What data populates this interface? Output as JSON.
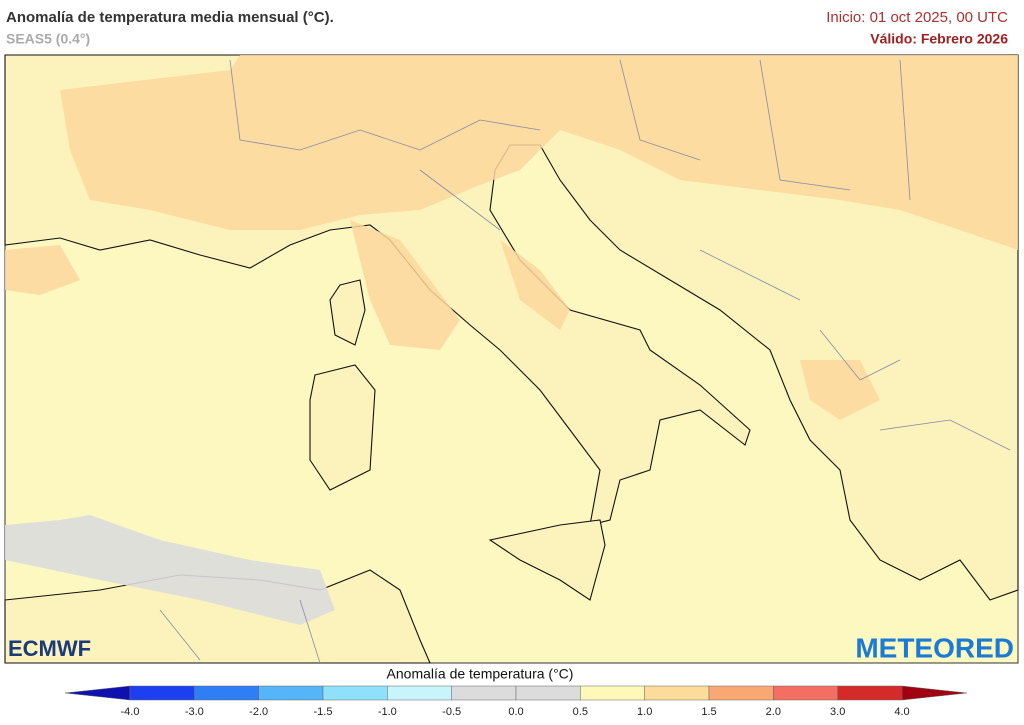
{
  "header": {
    "title": "Anomalía de temperatura media mensual (°C).",
    "subtitle": "SEAS5 (0.4°)",
    "init": "Inicio: 01 oct 2025, 00 UTC",
    "valid": "Válido: Febrero 2026"
  },
  "logos": {
    "left": "ECMWF",
    "right": "METEORED"
  },
  "colorbar": {
    "title": "Anomalía de temperatura (°C)",
    "labels": [
      "-4.0",
      "-3.0",
      "-2.0",
      "-1.5",
      "-1.0",
      "-0.5",
      "0.0",
      "0.5",
      "1.0",
      "1.5",
      "2.0",
      "3.0",
      "4.0"
    ],
    "colors": [
      "#1c3ff0",
      "#2f7ef5",
      "#56b4f8",
      "#8fe0fa",
      "#c8f4fb",
      "#dcdcdc",
      "#dcdcdc",
      "#fff8b8",
      "#fddc9a",
      "#f9a874",
      "#f26f62",
      "#d42a2a"
    ],
    "low_color": "#1010b0",
    "high_color": "#a00010"
  }
}
